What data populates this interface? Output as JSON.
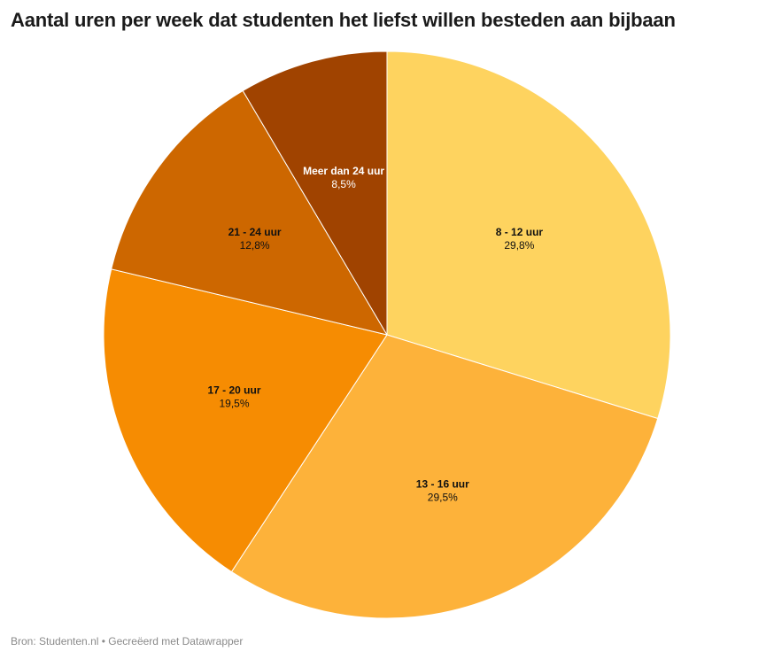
{
  "chart_data": {
    "type": "pie",
    "title": "Aantal uren per week dat studenten het liefst willen besteden aan bijbaan",
    "categories": [
      "8 - 12 uur",
      "13 - 16 uur",
      "17 - 20 uur",
      "21 - 24 uur",
      "Meer dan 24 uur"
    ],
    "values": [
      29.8,
      29.5,
      19.5,
      12.8,
      8.5
    ],
    "value_labels": [
      "29,8%",
      "29,5%",
      "19,5%",
      "12,8%",
      "8,5%"
    ],
    "colors": [
      "#fed35f",
      "#fdb23a",
      "#f68c02",
      "#cd6700",
      "#a04300"
    ],
    "label_colors": [
      "#111111",
      "#111111",
      "#111111",
      "#111111",
      "#ffffff"
    ],
    "start_angle": "12 o'clock",
    "direction": "clockwise",
    "legend": "none"
  },
  "footer": {
    "source": "Bron: Studenten.nl • Gecreëerd met Datawrapper"
  }
}
